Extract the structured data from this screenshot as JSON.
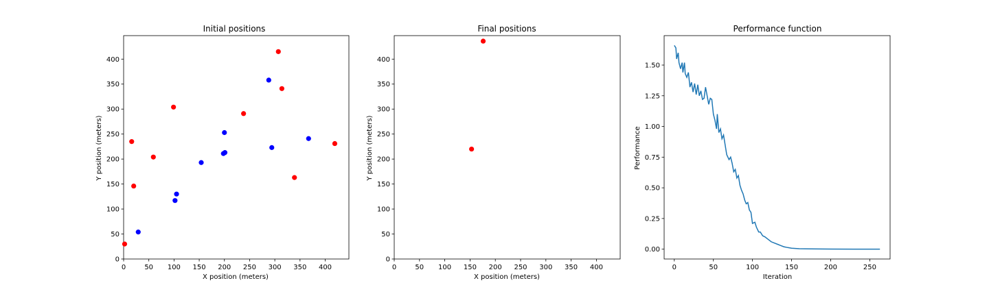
{
  "chart_data": [
    {
      "type": "scatter",
      "title": "Initial positions",
      "xlabel": "X position (meters)",
      "ylabel": "Y position (meters)",
      "xlim": [
        0,
        447
      ],
      "ylim": [
        0,
        447
      ],
      "xticks": [
        0,
        50,
        100,
        150,
        200,
        250,
        300,
        350,
        400
      ],
      "yticks": [
        0,
        50,
        100,
        150,
        200,
        250,
        300,
        350,
        400
      ],
      "grid": false,
      "series": [
        {
          "color": "#ff0000",
          "points": [
            [
              2,
              30
            ],
            [
              16,
              235
            ],
            [
              20,
              146
            ],
            [
              59,
              204
            ],
            [
              99,
              304
            ],
            [
              238,
              291
            ],
            [
              307,
              415
            ],
            [
              314,
              341
            ],
            [
              339,
              163
            ],
            [
              419,
              231
            ]
          ]
        },
        {
          "color": "#0000ff",
          "points": [
            [
              29,
              54
            ],
            [
              102,
              117
            ],
            [
              105,
              130
            ],
            [
              154,
              193
            ],
            [
              198,
              211
            ],
            [
              201,
              213
            ],
            [
              200,
              253
            ],
            [
              288,
              358
            ],
            [
              294,
              223
            ],
            [
              367,
              241
            ]
          ]
        }
      ]
    },
    {
      "type": "scatter",
      "title": "Final positions",
      "xlabel": "X position (meters)",
      "ylabel": "Y position (meters)",
      "xlim": [
        0,
        447
      ],
      "ylim": [
        0,
        447
      ],
      "xticks": [
        0,
        50,
        100,
        150,
        200,
        250,
        300,
        350,
        400
      ],
      "yticks": [
        0,
        50,
        100,
        150,
        200,
        250,
        300,
        350,
        400
      ],
      "grid": false,
      "series": [
        {
          "color": "#ff0000",
          "points": [
            [
              153,
              220
            ],
            [
              176,
              436
            ]
          ]
        }
      ]
    },
    {
      "type": "line",
      "title": "Performance function",
      "xlabel": "Iteration",
      "ylabel": "Performance",
      "xlim": [
        -13,
        276
      ],
      "ylim": [
        -0.08,
        1.74
      ],
      "xticks": [
        0,
        50,
        100,
        150,
        200,
        250
      ],
      "yticks": [
        0.0,
        0.25,
        0.5,
        0.75,
        1.0,
        1.25,
        1.5
      ],
      "ytick_labels": [
        "0.00",
        "0.25",
        "0.50",
        "0.75",
        "1.00",
        "1.25",
        "1.50"
      ],
      "grid": false,
      "series": [
        {
          "color": "#1f77b4",
          "points": [
            [
              0,
              1.66
            ],
            [
              2,
              1.64
            ],
            [
              3,
              1.55
            ],
            [
              5,
              1.6
            ],
            [
              6,
              1.52
            ],
            [
              8,
              1.47
            ],
            [
              10,
              1.52
            ],
            [
              11,
              1.44
            ],
            [
              13,
              1.52
            ],
            [
              14,
              1.43
            ],
            [
              16,
              1.4
            ],
            [
              18,
              1.44
            ],
            [
              20,
              1.32
            ],
            [
              22,
              1.36
            ],
            [
              24,
              1.28
            ],
            [
              26,
              1.35
            ],
            [
              28,
              1.26
            ],
            [
              30,
              1.34
            ],
            [
              32,
              1.25
            ],
            [
              34,
              1.29
            ],
            [
              36,
              1.22
            ],
            [
              38,
              1.23
            ],
            [
              40,
              1.32
            ],
            [
              42,
              1.25
            ],
            [
              44,
              1.18
            ],
            [
              46,
              1.23
            ],
            [
              48,
              1.22
            ],
            [
              50,
              1.1
            ],
            [
              52,
              1.05
            ],
            [
              54,
              0.98
            ],
            [
              55,
              1.1
            ],
            [
              57,
              0.95
            ],
            [
              59,
              0.98
            ],
            [
              61,
              0.9
            ],
            [
              63,
              0.93
            ],
            [
              65,
              0.85
            ],
            [
              67,
              0.77
            ],
            [
              70,
              0.73
            ],
            [
              72,
              0.75
            ],
            [
              74,
              0.7
            ],
            [
              76,
              0.63
            ],
            [
              78,
              0.65
            ],
            [
              80,
              0.58
            ],
            [
              82,
              0.6
            ],
            [
              84,
              0.52
            ],
            [
              86,
              0.48
            ],
            [
              88,
              0.45
            ],
            [
              90,
              0.4
            ],
            [
              92,
              0.37
            ],
            [
              94,
              0.38
            ],
            [
              96,
              0.32
            ],
            [
              98,
              0.3
            ],
            [
              100,
              0.21
            ],
            [
              103,
              0.22
            ],
            [
              105,
              0.18
            ],
            [
              108,
              0.14
            ],
            [
              110,
              0.14
            ],
            [
              113,
              0.11
            ],
            [
              116,
              0.1
            ],
            [
              120,
              0.08
            ],
            [
              124,
              0.06
            ],
            [
              128,
              0.05
            ],
            [
              132,
              0.04
            ],
            [
              136,
              0.03
            ],
            [
              140,
              0.02
            ],
            [
              145,
              0.013
            ],
            [
              150,
              0.008
            ],
            [
              160,
              0.004
            ],
            [
              175,
              0.002
            ],
            [
              200,
              0.001
            ],
            [
              230,
              0.0005
            ],
            [
              263,
              0.0003
            ]
          ]
        }
      ]
    }
  ]
}
